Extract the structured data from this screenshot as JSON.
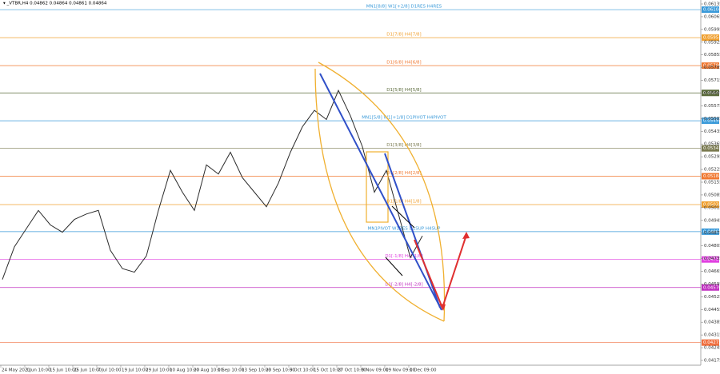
{
  "chart_data": {
    "type": "line",
    "title": "▾ _VTBR,H4  0.04862 0.04864 0.04861 0.04864",
    "categories": [
      "24 May 2021",
      null,
      "3 Jun 10:00",
      null,
      "15 Jun 10:00",
      null,
      "25 Jun 10:00",
      null,
      "7 Jul 10:00",
      null,
      "19 Jul 10:00",
      null,
      "29 Jul 10:00",
      null,
      "10 Aug 10:00",
      null,
      "20 Aug 10:00",
      null,
      "1 Sep 10:00",
      null,
      "13 Sep 10:00",
      null,
      "23 Sep 10:00",
      null,
      "5 Oct 10:00",
      null,
      "15 Oct 10:00",
      null,
      "27 Oct 10:00",
      null,
      "9 Nov 09:00",
      null,
      "19 Nov 09:00",
      null,
      "1 Dec 09:00",
      null
    ],
    "series": [
      {
        "name": "_VTBR,H4",
        "color": "#2b2b2b",
        "values": [
          0.0462,
          0.048,
          0.049,
          0.05,
          0.0492,
          0.0488,
          0.0495,
          0.0498,
          0.05,
          0.0478,
          0.0468,
          0.0466,
          0.0475,
          0.05,
          0.0522,
          0.051,
          0.05,
          0.0525,
          0.052,
          0.0532,
          0.0518,
          0.051,
          0.0502,
          0.0515,
          0.0532,
          0.0546,
          0.0555,
          0.055,
          0.0566,
          0.0552,
          0.0535,
          0.051,
          0.0522,
          0.0498,
          0.0474,
          0.0486
        ]
      }
    ],
    "ylim": [
      0.04175,
      0.06135
    ],
    "yticks": [
      0.04175,
      0.04245,
      0.04315,
      0.04385,
      0.04455,
      0.04525,
      0.04595,
      0.04665,
      0.04735,
      0.04805,
      0.04875,
      0.04945,
      0.05015,
      0.05085,
      0.05155,
      0.05225,
      0.05295,
      0.05365,
      0.05435,
      0.05505,
      0.05575,
      0.05645,
      0.05715,
      0.05785,
      0.05855,
      0.05925,
      0.05995,
      0.06065,
      0.06135
    ],
    "levels": [
      {
        "label": "MN1[8/8] W1[+2/8] D1RES H4RES",
        "value": 0.06104,
        "color": "#3a9ad9"
      },
      {
        "label": "D1[7/8] H4[7/8]",
        "value": 0.0595,
        "color": "#f0a030"
      },
      {
        "label": "D1[6/8] H4[6/8]",
        "value": 0.05796,
        "color": "#f07830"
      },
      {
        "label": "D1[5/8] H4[5/8]",
        "value": 0.05646,
        "color": "#5a6a3a"
      },
      {
        "label": "MN1[5/8] W1[+1/8] D1PIVOT H4PIVOT",
        "value": 0.05493,
        "color": "#3a9ad9"
      },
      {
        "label": "D1[3/8] H4[3/8]",
        "value": 0.05341,
        "color": "#7a7a50"
      },
      {
        "label": "D1[2/8] H4[2/8]",
        "value": 0.05188,
        "color": "#f07830"
      },
      {
        "label": "D1[1/8] H4[1/8]",
        "value": 0.05032,
        "color": "#f0a030"
      },
      {
        "label": "MN1PIVOT W1RES D1SUP H4SUP",
        "value": 0.04883,
        "color": "#3a9ad9"
      },
      {
        "label": "D1[-1/8] H4[-1/8]",
        "value": 0.0473,
        "color": "#e040e0"
      },
      {
        "label": "D1[-2/8] H4[-2/8]",
        "value": 0.04576,
        "color": "#c030c0"
      },
      {
        "value": 0.04273,
        "color": "#f07040"
      }
    ]
  }
}
